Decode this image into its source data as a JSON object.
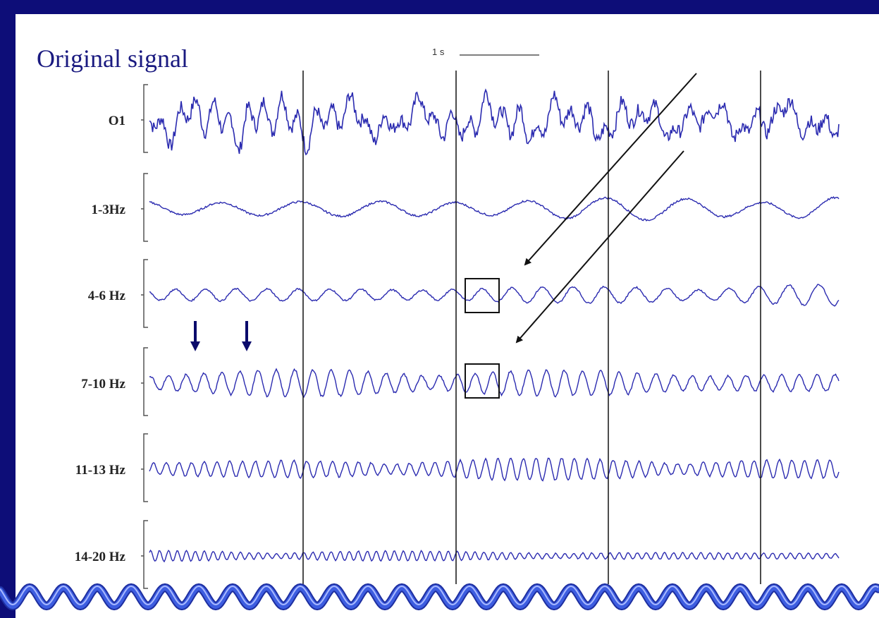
{
  "slide": {
    "title": "Original signal",
    "colors": {
      "background": "#0b0b6b",
      "panel": "#ffffff",
      "trace": "#2b2bb0",
      "title": "#1a1a80",
      "border_wave": "#3d5de0"
    }
  },
  "chart_data": {
    "type": "line",
    "title": "",
    "scale_bar_label": "1 s",
    "channels": [
      {
        "name": "O1",
        "band_hz": null
      },
      {
        "name": "1-3Hz",
        "band_hz": [
          1,
          3
        ]
      },
      {
        "name": "4-6 Hz",
        "band_hz": [
          4,
          6
        ]
      },
      {
        "name": "7-10 Hz",
        "band_hz": [
          7,
          10
        ]
      },
      {
        "name": "11-13 Hz",
        "band_hz": [
          11,
          13
        ]
      },
      {
        "name": "14-20 Hz",
        "band_hz": [
          14,
          20
        ]
      }
    ],
    "duration_s": 4.5,
    "epoch_markers_s": [
      1,
      2,
      3,
      4
    ],
    "highlight_boxes": [
      {
        "channel": "4-6 Hz",
        "t_start_s": 1.05,
        "t_end_s": 1.27
      },
      {
        "channel": "7-10 Hz",
        "t_start_s": 1.05,
        "t_end_s": 1.27
      }
    ],
    "annotation_arrows": [
      {
        "target": "4-6 Hz box",
        "type": "diagonal"
      },
      {
        "target": "7-10 Hz box",
        "type": "diagonal"
      }
    ],
    "down_arrows": [
      {
        "channel": "7-10 Hz",
        "t_s": -0.71
      },
      {
        "channel": "7-10 Hz",
        "t_s": -0.38
      }
    ]
  }
}
